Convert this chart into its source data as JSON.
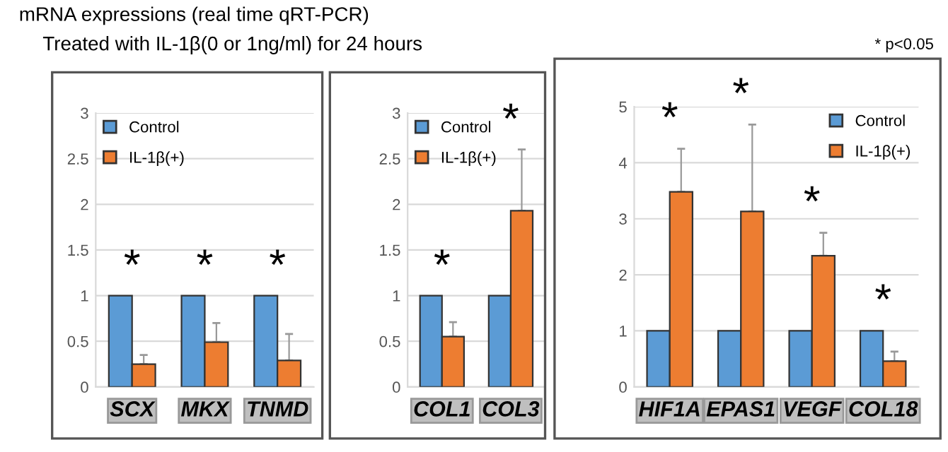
{
  "chart_data": [
    {
      "type": "bar",
      "title": "mRNA expressions (real time qRT-PCR)",
      "subtitle": "Treated with IL-1β(0 or 1ng/ml) for 24 hours",
      "categories": [
        "SCX",
        "MKX",
        "TNMD"
      ],
      "series": [
        {
          "name": "Control",
          "color": "#5b9bd5",
          "values": [
            1,
            1,
            1
          ]
        },
        {
          "name": "IL-1β(+)",
          "color": "#ed7d31",
          "values": [
            0.25,
            0.49,
            0.29
          ],
          "errors": [
            0.1,
            0.21,
            0.29
          ]
        }
      ],
      "ylim": [
        0,
        3
      ],
      "yticks": [
        0,
        0.5,
        1,
        1.5,
        2,
        2.5,
        3
      ],
      "grid": "y",
      "legend": "top left",
      "annotations": [
        "*",
        "*",
        "*"
      ]
    },
    {
      "type": "bar",
      "categories": [
        "COL1",
        "COL3"
      ],
      "series": [
        {
          "name": "Control",
          "color": "#5b9bd5",
          "values": [
            1,
            1
          ]
        },
        {
          "name": "IL-1β(+)",
          "color": "#ed7d31",
          "values": [
            0.55,
            1.93
          ],
          "errors": [
            0.16,
            0.67
          ]
        }
      ],
      "ylim": [
        0,
        3
      ],
      "yticks": [
        0,
        0.5,
        1,
        1.5,
        2,
        2.5,
        3
      ],
      "grid": "y",
      "legend": "top left",
      "annotations": [
        "*",
        "*"
      ]
    },
    {
      "type": "bar",
      "categories": [
        "HIF1A",
        "EPAS1",
        "VEGF",
        "COL18"
      ],
      "series": [
        {
          "name": "Control",
          "color": "#5b9bd5",
          "values": [
            1,
            1,
            1,
            1
          ]
        },
        {
          "name": "IL-1β(+)",
          "color": "#ed7d31",
          "values": [
            3.48,
            3.13,
            2.34,
            0.46
          ],
          "errors": [
            0.77,
            1.55,
            0.41,
            0.17
          ]
        }
      ],
      "ylim": [
        0,
        5
      ],
      "yticks": [
        0,
        1,
        2,
        3,
        4,
        5
      ],
      "grid": "y",
      "legend": "top right",
      "annotations": [
        "* p<0.05",
        "*",
        "*",
        "*",
        "*"
      ]
    }
  ]
}
